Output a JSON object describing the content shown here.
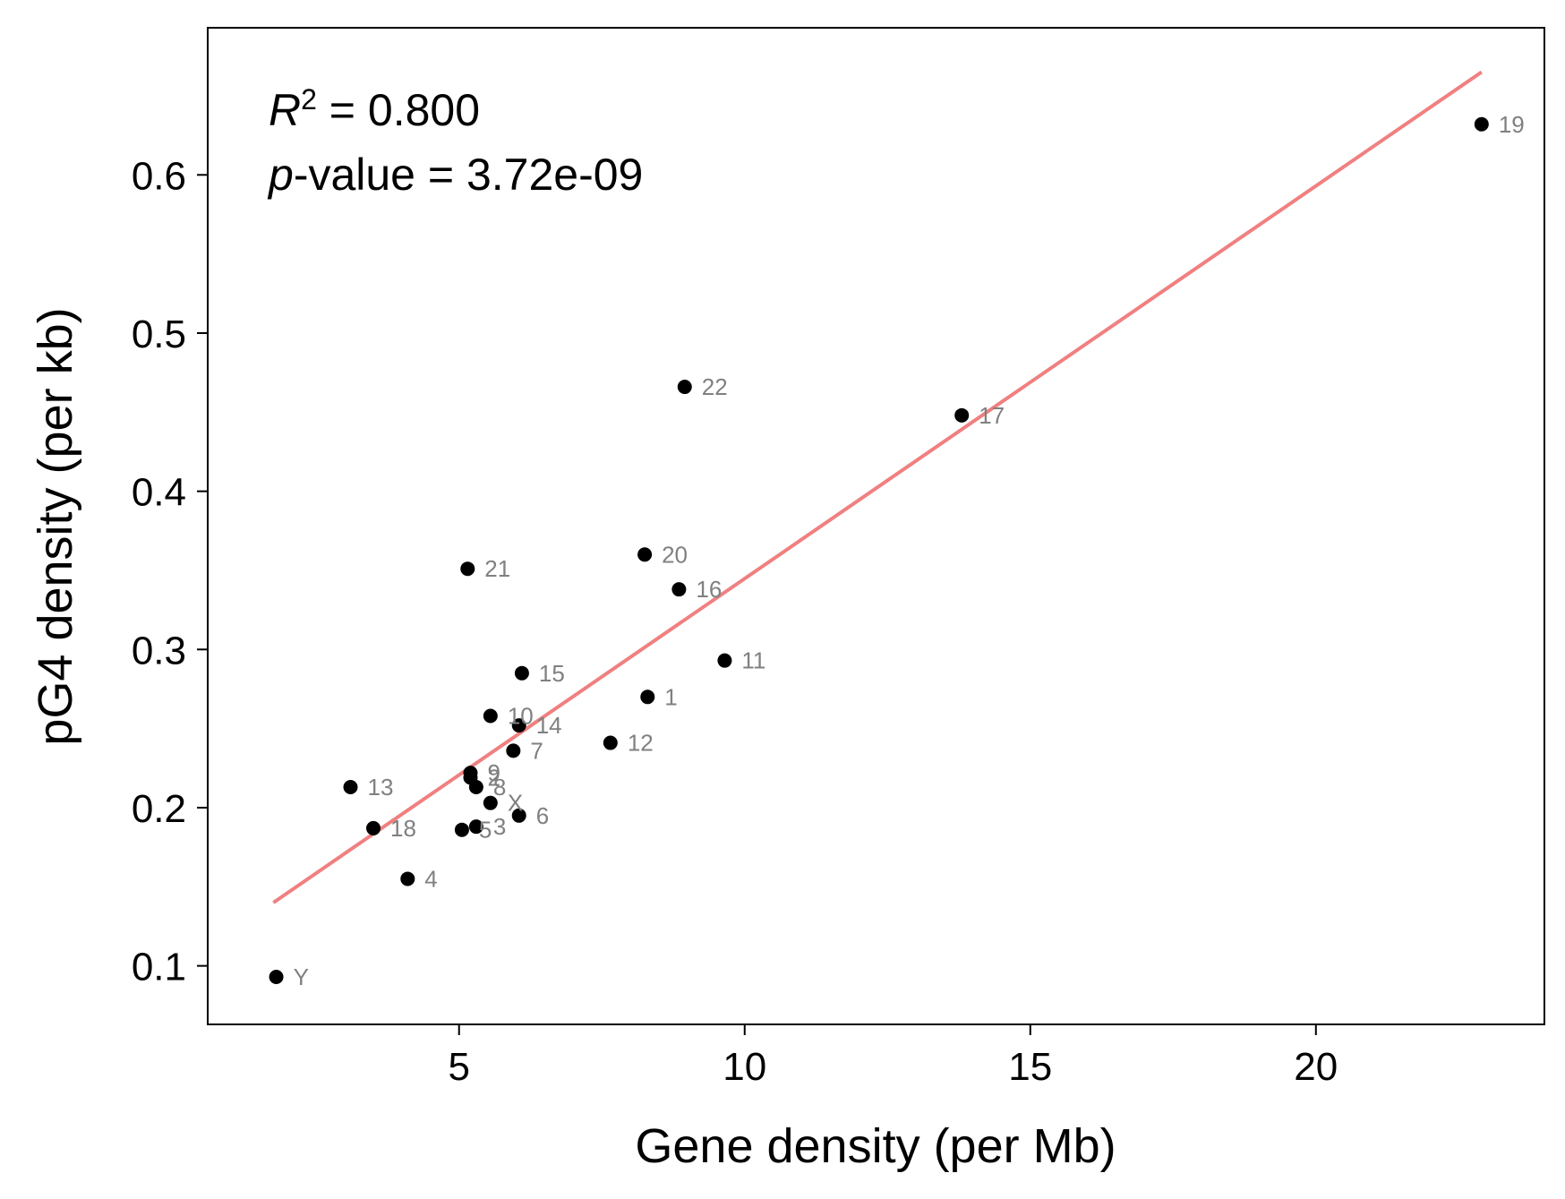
{
  "chart_data": {
    "type": "scatter",
    "title": "",
    "xlabel": "Gene density (per Mb)",
    "ylabel": "pG4 density (per kb)",
    "xlim": [
      0.6,
      24.0
    ],
    "ylim": [
      0.063,
      0.693
    ],
    "xticks": [
      5,
      10,
      15,
      20
    ],
    "yticks": [
      0.1,
      0.2,
      0.3,
      0.4,
      0.5,
      0.6
    ],
    "xtick_labels": [
      "5",
      "10",
      "15",
      "20"
    ],
    "ytick_labels": [
      "0.1",
      "0.2",
      "0.3",
      "0.4",
      "0.5",
      "0.6"
    ],
    "grid": false,
    "point_color": "#000000",
    "label_color": "#808080",
    "fit_color": "#f08080",
    "annotation": {
      "r2_symbol": "R",
      "r2_sup": "2",
      "r2_text": " = 0.800",
      "p_symbol": "p",
      "p_text": "-value = 3.72e-09"
    },
    "points": [
      {
        "label": "1",
        "x": 8.3,
        "y": 0.27
      },
      {
        "label": "2",
        "x": 5.2,
        "y": 0.219
      },
      {
        "label": "3",
        "x": 5.3,
        "y": 0.188
      },
      {
        "label": "4",
        "x": 4.1,
        "y": 0.155
      },
      {
        "label": "5",
        "x": 5.05,
        "y": 0.186
      },
      {
        "label": "6",
        "x": 6.05,
        "y": 0.195
      },
      {
        "label": "7",
        "x": 5.95,
        "y": 0.236
      },
      {
        "label": "8",
        "x": 5.3,
        "y": 0.213
      },
      {
        "label": "9",
        "x": 5.2,
        "y": 0.222
      },
      {
        "label": "10",
        "x": 5.55,
        "y": 0.258
      },
      {
        "label": "11",
        "x": 9.65,
        "y": 0.293
      },
      {
        "label": "12",
        "x": 7.65,
        "y": 0.241
      },
      {
        "label": "13",
        "x": 3.1,
        "y": 0.213
      },
      {
        "label": "14",
        "x": 6.05,
        "y": 0.252
      },
      {
        "label": "15",
        "x": 6.1,
        "y": 0.285
      },
      {
        "label": "16",
        "x": 8.85,
        "y": 0.338
      },
      {
        "label": "17",
        "x": 13.8,
        "y": 0.448
      },
      {
        "label": "18",
        "x": 3.5,
        "y": 0.187
      },
      {
        "label": "19",
        "x": 22.9,
        "y": 0.632
      },
      {
        "label": "20",
        "x": 8.25,
        "y": 0.36
      },
      {
        "label": "21",
        "x": 5.15,
        "y": 0.351
      },
      {
        "label": "22",
        "x": 8.95,
        "y": 0.466
      },
      {
        "label": "X",
        "x": 5.55,
        "y": 0.203
      },
      {
        "label": "Y",
        "x": 1.8,
        "y": 0.093
      }
    ],
    "fit_line": {
      "x": [
        1.75,
        22.9
      ],
      "y": [
        0.14,
        0.665
      ]
    }
  }
}
